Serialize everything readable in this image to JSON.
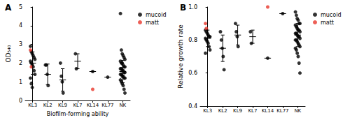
{
  "chart_data": [
    {
      "type": "scatter",
      "title": "A",
      "x_label": "Biofilm-forming ability",
      "y_label": "OD₅₄₀",
      "categories": [
        "KL3",
        "KL2",
        "KL9",
        "KL7",
        "KL14",
        "KL77",
        "NK"
      ],
      "ylim": [
        0,
        5
      ],
      "yticks": [
        0,
        1,
        2,
        3,
        4,
        5
      ],
      "grid": false,
      "legend": "right",
      "marker": "circle",
      "series": [
        {
          "name": "mucoid",
          "color": "#000000",
          "values": [
            [
              2.9,
              2.6,
              2.5,
              2.4,
              2.3,
              2.2,
              2.1,
              2.0,
              1.9,
              1.8,
              1.6,
              1.4,
              1.2,
              0.9,
              0.7
            ],
            [
              1.9,
              1.9,
              1.4,
              0.8
            ],
            [
              2.0,
              1.3,
              1.0,
              0.4
            ],
            [
              2.5,
              1.7
            ],
            [
              1.55
            ],
            [
              1.25
            ],
            [
              4.65,
              2.7,
              2.5,
              2.4,
              2.3,
              2.2,
              2.1,
              2.0,
              2.0,
              1.9,
              1.8,
              1.8,
              1.7,
              1.7,
              1.6,
              1.6,
              1.5,
              1.5,
              1.4,
              1.4,
              1.3,
              1.3,
              1.2,
              1.2,
              1.1,
              1.0,
              0.9,
              0.8,
              0.6,
              0.4
            ]
          ]
        },
        {
          "name": "matt",
          "color": "#e8372c",
          "values": [
            [
              2.7,
              1.8
            ],
            [],
            [],
            [],
            [
              0.6
            ],
            [],
            []
          ]
        }
      ],
      "mean": [
        2.0,
        1.4,
        1.1,
        2.1,
        1.55,
        1.25,
        1.55
      ],
      "sd": [
        0.6,
        0.55,
        0.6,
        0.4,
        0,
        0,
        0.6
      ]
    },
    {
      "type": "scatter",
      "title": "B",
      "y_label": "Relative growth rate",
      "categories": [
        "KL3",
        "KL2",
        "KL9",
        "KL7",
        "KL14",
        "KL77",
        "NK"
      ],
      "ylim": [
        0.4,
        1.0
      ],
      "yticks": [
        0.4,
        0.6,
        0.8,
        {
          "value": 1.0,
          "label": "1.0"
        }
      ],
      "grid": false,
      "legend": "right",
      "marker": "circle",
      "series": [
        {
          "name": "mucoid",
          "color": "#000000",
          "values": [
            [
              0.86,
              0.85,
              0.84,
              0.83,
              0.82,
              0.82,
              0.81,
              0.8,
              0.79,
              0.78,
              0.76,
              0.74,
              0.72
            ],
            [
              0.85,
              0.8,
              0.75,
              0.7,
              0.62
            ],
            [
              0.9,
              0.85,
              0.82,
              0.76
            ],
            [
              0.85,
              0.78
            ],
            [
              0.69
            ],
            [
              0.96
            ],
            [
              0.97,
              0.95,
              0.93,
              0.92,
              0.9,
              0.9,
              0.89,
              0.88,
              0.87,
              0.86,
              0.86,
              0.85,
              0.84,
              0.84,
              0.83,
              0.82,
              0.82,
              0.81,
              0.8,
              0.8,
              0.79,
              0.78,
              0.77,
              0.76,
              0.75,
              0.74,
              0.72,
              0.7,
              0.66,
              0.6
            ]
          ]
        },
        {
          "name": "matt",
          "color": "#e8372c",
          "values": [
            [
              0.9,
              0.87
            ],
            [],
            [],
            [],
            [
              1.0
            ],
            [],
            []
          ]
        }
      ],
      "mean": [
        0.81,
        0.75,
        0.83,
        0.82,
        0.69,
        0.96,
        0.83
      ],
      "sd": [
        0.05,
        0.08,
        0.06,
        0.04,
        0,
        0,
        0.07
      ]
    }
  ]
}
